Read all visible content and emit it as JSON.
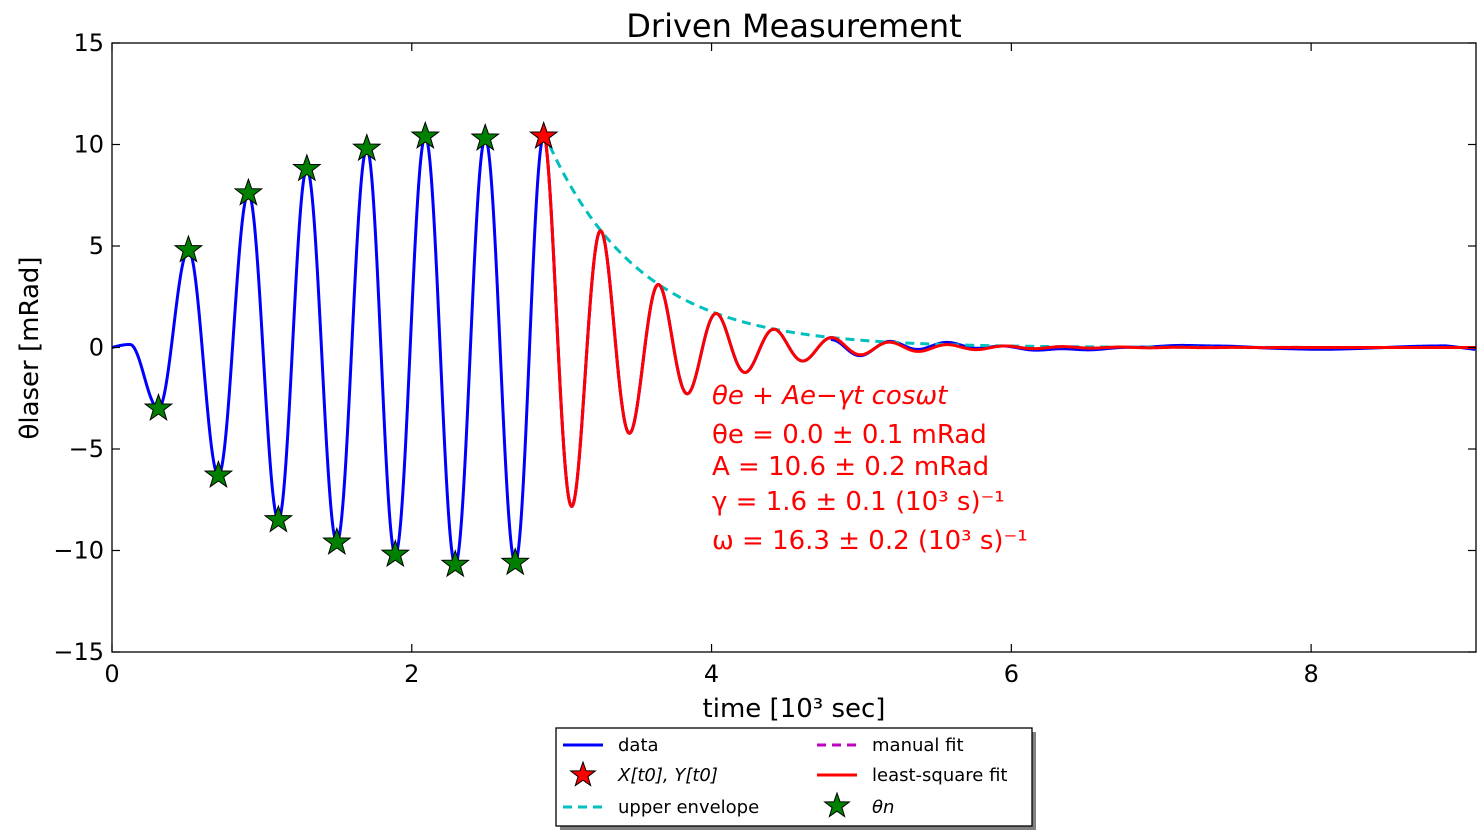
{
  "chart_data": {
    "type": "line",
    "title": "Driven Measurement",
    "xlabel": "time [10³ sec]",
    "ylabel": "θlaser [mRad]",
    "xlim": [
      0,
      9.1
    ],
    "ylim": [
      -15,
      15
    ],
    "xticks": [
      0,
      2,
      4,
      6,
      8
    ],
    "yticks": [
      -15,
      -10,
      -5,
      0,
      5,
      10,
      15
    ],
    "xtick_labels": [
      "0",
      "2",
      "4",
      "6",
      "8"
    ],
    "ytick_labels": [
      "−15",
      "−10",
      "−5",
      "0",
      "5",
      "10",
      "15"
    ],
    "grid": false,
    "legend_position": "bottom-center, outside plot",
    "colors": {
      "data": "#0000ff",
      "upper_envelope": "#00bfbf",
      "manual_fit": "#bf00bf",
      "least_square_fit": "#ff0000",
      "t0_marker": "#ff0000",
      "theta_n_marker": "#008000"
    },
    "fit_params": {
      "theta_e": 0.0,
      "A": 10.6,
      "gamma": 1.6,
      "omega": 16.3,
      "t0": 2.88
    },
    "t0_point": {
      "x": 2.88,
      "y": 10.4
    },
    "theta_n_points": [
      {
        "x": 0.31,
        "y": -3.0
      },
      {
        "x": 0.51,
        "y": 4.8
      },
      {
        "x": 0.71,
        "y": -6.3
      },
      {
        "x": 0.91,
        "y": 7.6
      },
      {
        "x": 1.11,
        "y": -8.5
      },
      {
        "x": 1.3,
        "y": 8.8
      },
      {
        "x": 1.5,
        "y": -9.6
      },
      {
        "x": 1.7,
        "y": 9.8
      },
      {
        "x": 1.89,
        "y": -10.2
      },
      {
        "x": 2.09,
        "y": 10.4
      },
      {
        "x": 2.29,
        "y": -10.7
      },
      {
        "x": 2.49,
        "y": 10.3
      },
      {
        "x": 2.69,
        "y": -10.6
      }
    ],
    "series": [
      {
        "name": "data",
        "style": "solid"
      },
      {
        "name": "upper envelope",
        "style": "dashed"
      },
      {
        "name": "manual fit",
        "style": "dashed"
      },
      {
        "name": "least-square fit",
        "style": "solid"
      }
    ],
    "annotations": {
      "formula": "θe + Ae−γt cosωt",
      "theta_e": "θe = 0.0 ± 0.1 mRad",
      "A": "A = 10.6 ± 0.2 mRad",
      "gamma": "γ = 1.6 ± 0.1 (10³ s)⁻¹",
      "omega": "ω = 16.3 ± 0.2 (10³ s)⁻¹"
    },
    "legend": [
      {
        "label": "data"
      },
      {
        "label": "X[t0], Y[t0]"
      },
      {
        "label": "upper envelope"
      },
      {
        "label": "manual fit"
      },
      {
        "label": "least-square fit"
      },
      {
        "label": "θn"
      }
    ]
  }
}
